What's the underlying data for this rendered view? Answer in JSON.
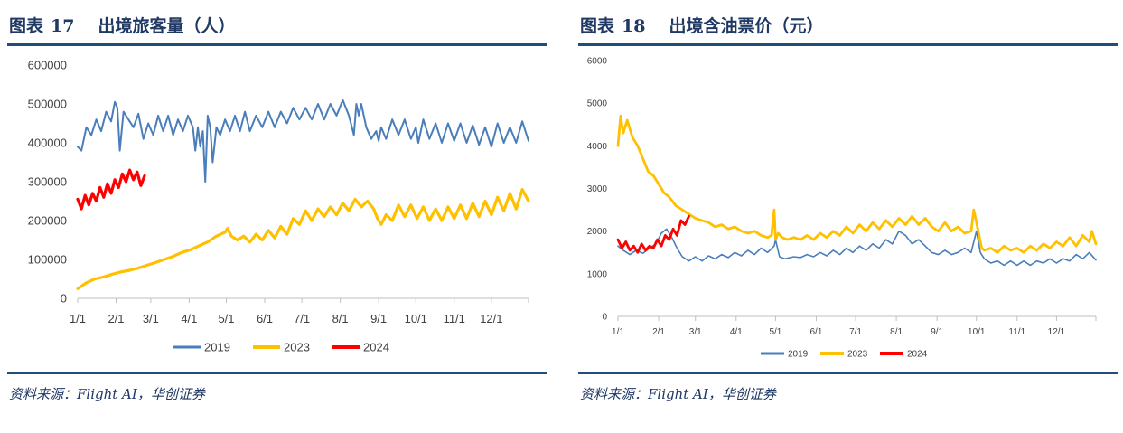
{
  "panels": [
    {
      "figure_label": "图表",
      "figure_number": "17",
      "title": "出境旅客量（人）",
      "source": "资料来源：Flight AI，华创证券"
    },
    {
      "figure_label": "图表",
      "figure_number": "18",
      "title": "出境含油票价（元）",
      "source": "资料来源：Flight AI，华创证券"
    }
  ],
  "colors": {
    "2019": "#4a7ebb",
    "2023": "#ffc000",
    "2024": "#ff0000",
    "axis": "#bfbfbf",
    "title": "#1f3864"
  },
  "chart_data": [
    {
      "type": "line",
      "title": "出境旅客量（人）",
      "x_tick_labels": [
        "1/1",
        "2/1",
        "3/1",
        "4/1",
        "5/1",
        "6/1",
        "7/1",
        "8/1",
        "9/1",
        "10/1",
        "11/1",
        "12/1"
      ],
      "y_tick_labels": [
        "0",
        "100000",
        "200000",
        "300000",
        "400000",
        "500000",
        "600000"
      ],
      "ylim": [
        0,
        600000
      ],
      "x_unit": "day of year (1 = Jan 1)",
      "legend": [
        "2019",
        "2023",
        "2024"
      ],
      "legend_position": "bottom",
      "grid": false,
      "series": [
        {
          "name": "2019",
          "x": [
            1,
            4,
            8,
            12,
            16,
            20,
            24,
            28,
            31,
            33,
            35,
            38,
            42,
            46,
            50,
            54,
            58,
            62,
            66,
            70,
            74,
            78,
            82,
            86,
            90,
            94,
            96,
            98,
            100,
            102,
            104,
            106,
            108,
            110,
            113,
            116,
            120,
            124,
            128,
            132,
            136,
            140,
            145,
            150,
            155,
            160,
            165,
            170,
            175,
            180,
            185,
            190,
            195,
            200,
            205,
            210,
            215,
            220,
            224,
            226,
            228,
            230,
            234,
            238,
            242,
            244,
            246,
            250,
            255,
            260,
            265,
            270,
            274,
            276,
            280,
            285,
            290,
            295,
            300,
            305,
            310,
            315,
            320,
            325,
            330,
            335,
            340,
            345,
            350,
            355,
            360,
            365
          ],
          "y": [
            390000,
            380000,
            440000,
            420000,
            460000,
            430000,
            480000,
            455000,
            505000,
            490000,
            380000,
            480000,
            460000,
            440000,
            475000,
            410000,
            450000,
            420000,
            470000,
            430000,
            470000,
            420000,
            460000,
            430000,
            470000,
            440000,
            380000,
            440000,
            390000,
            430000,
            300000,
            470000,
            440000,
            350000,
            440000,
            420000,
            460000,
            430000,
            470000,
            430000,
            480000,
            430000,
            470000,
            440000,
            480000,
            440000,
            480000,
            450000,
            490000,
            460000,
            490000,
            460000,
            500000,
            460000,
            500000,
            470000,
            510000,
            470000,
            420000,
            500000,
            470000,
            500000,
            440000,
            410000,
            430000,
            405000,
            440000,
            410000,
            460000,
            420000,
            460000,
            410000,
            440000,
            400000,
            460000,
            410000,
            450000,
            400000,
            450000,
            405000,
            450000,
            400000,
            445000,
            395000,
            440000,
            390000,
            450000,
            400000,
            440000,
            400000,
            455000,
            405000
          ]
        },
        {
          "name": "2023",
          "x": [
            1,
            8,
            15,
            22,
            29,
            36,
            43,
            50,
            57,
            64,
            71,
            78,
            85,
            92,
            99,
            106,
            113,
            120,
            122,
            125,
            130,
            135,
            140,
            145,
            150,
            155,
            160,
            165,
            170,
            175,
            180,
            185,
            190,
            195,
            200,
            205,
            210,
            215,
            220,
            225,
            230,
            235,
            240,
            243,
            246,
            250,
            255,
            260,
            265,
            270,
            275,
            280,
            285,
            290,
            295,
            300,
            305,
            310,
            315,
            320,
            325,
            330,
            335,
            340,
            345,
            350,
            355,
            360,
            365
          ],
          "y": [
            25000,
            40000,
            50000,
            55000,
            62000,
            68000,
            72000,
            78000,
            85000,
            92000,
            100000,
            108000,
            118000,
            125000,
            135000,
            145000,
            160000,
            170000,
            180000,
            160000,
            150000,
            160000,
            145000,
            165000,
            150000,
            175000,
            155000,
            185000,
            165000,
            205000,
            190000,
            225000,
            200000,
            230000,
            210000,
            235000,
            215000,
            245000,
            225000,
            255000,
            235000,
            250000,
            230000,
            205000,
            190000,
            215000,
            200000,
            240000,
            210000,
            240000,
            205000,
            235000,
            200000,
            230000,
            200000,
            235000,
            205000,
            240000,
            205000,
            245000,
            210000,
            250000,
            215000,
            260000,
            225000,
            270000,
            230000,
            280000,
            250000
          ]
        },
        {
          "name": "2024",
          "x": [
            1,
            4,
            7,
            10,
            13,
            16,
            19,
            22,
            25,
            28,
            31,
            34,
            37,
            40,
            43,
            46,
            49,
            52,
            55
          ],
          "y": [
            255000,
            230000,
            265000,
            240000,
            270000,
            250000,
            285000,
            260000,
            295000,
            270000,
            305000,
            285000,
            320000,
            300000,
            330000,
            305000,
            325000,
            290000,
            315000
          ]
        }
      ]
    },
    {
      "type": "line",
      "title": "出境含油票价（元）",
      "x_tick_labels": [
        "1/1",
        "2/1",
        "3/1",
        "4/1",
        "5/1",
        "6/1",
        "7/1",
        "8/1",
        "9/1",
        "10/1",
        "11/1",
        "12/1"
      ],
      "y_tick_labels": [
        "0",
        "1000",
        "2000",
        "3000",
        "4000",
        "5000",
        "6000"
      ],
      "ylim": [
        0,
        6000
      ],
      "x_unit": "day of year (1 = Jan 1)",
      "legend": [
        "2019",
        "2023",
        "2024"
      ],
      "legend_position": "bottom",
      "grid": false,
      "series": [
        {
          "name": "2019",
          "x": [
            1,
            5,
            10,
            15,
            20,
            25,
            30,
            34,
            38,
            42,
            46,
            50,
            55,
            60,
            65,
            70,
            75,
            80,
            85,
            90,
            95,
            100,
            105,
            110,
            115,
            120,
            121,
            124,
            128,
            135,
            140,
            145,
            150,
            155,
            160,
            165,
            170,
            175,
            180,
            185,
            190,
            195,
            200,
            205,
            210,
            215,
            220,
            225,
            230,
            235,
            240,
            245,
            250,
            255,
            260,
            265,
            270,
            272,
            274,
            277,
            280,
            285,
            290,
            295,
            300,
            305,
            310,
            315,
            320,
            325,
            330,
            335,
            340,
            345,
            350,
            355,
            360,
            365
          ],
          "y": [
            1650,
            1550,
            1450,
            1550,
            1480,
            1600,
            1700,
            1950,
            2050,
            1850,
            1600,
            1400,
            1300,
            1400,
            1300,
            1420,
            1350,
            1450,
            1380,
            1500,
            1420,
            1550,
            1450,
            1600,
            1500,
            1650,
            1800,
            1400,
            1350,
            1400,
            1380,
            1450,
            1400,
            1500,
            1420,
            1550,
            1450,
            1600,
            1500,
            1650,
            1550,
            1700,
            1600,
            1800,
            1700,
            2000,
            1900,
            1700,
            1800,
            1650,
            1500,
            1450,
            1550,
            1450,
            1500,
            1600,
            1500,
            1750,
            2000,
            1500,
            1350,
            1250,
            1300,
            1200,
            1300,
            1200,
            1300,
            1200,
            1300,
            1250,
            1350,
            1250,
            1350,
            1300,
            1450,
            1350,
            1500,
            1320
          ]
        },
        {
          "name": "2023",
          "x": [
            1,
            3,
            5,
            8,
            12,
            16,
            20,
            24,
            28,
            32,
            36,
            40,
            45,
            50,
            55,
            60,
            65,
            70,
            75,
            80,
            85,
            90,
            95,
            100,
            105,
            110,
            115,
            118,
            120,
            121,
            123,
            126,
            130,
            135,
            140,
            145,
            150,
            155,
            160,
            165,
            170,
            175,
            180,
            185,
            190,
            195,
            200,
            205,
            210,
            215,
            220,
            225,
            230,
            235,
            240,
            245,
            250,
            255,
            260,
            265,
            270,
            272,
            274,
            276,
            278,
            280,
            285,
            290,
            295,
            300,
            305,
            310,
            315,
            320,
            325,
            330,
            335,
            340,
            345,
            350,
            355,
            360,
            362,
            365
          ],
          "y": [
            4000,
            4700,
            4300,
            4600,
            4200,
            4000,
            3700,
            3400,
            3300,
            3100,
            2900,
            2800,
            2600,
            2500,
            2400,
            2300,
            2250,
            2200,
            2100,
            2150,
            2050,
            2100,
            2000,
            1950,
            2000,
            1900,
            1850,
            1900,
            2500,
            1800,
            1950,
            1850,
            1800,
            1850,
            1800,
            1900,
            1800,
            1950,
            1850,
            2000,
            1900,
            2100,
            1950,
            2150,
            2000,
            2200,
            2050,
            2250,
            2100,
            2300,
            2150,
            2350,
            2150,
            2300,
            2100,
            2000,
            2200,
            2000,
            2100,
            1950,
            2000,
            2500,
            2200,
            1900,
            1600,
            1550,
            1600,
            1500,
            1650,
            1550,
            1600,
            1500,
            1650,
            1550,
            1700,
            1600,
            1750,
            1650,
            1850,
            1650,
            1900,
            1750,
            2000,
            1700
          ]
        },
        {
          "name": "2024",
          "x": [
            1,
            4,
            7,
            10,
            13,
            16,
            19,
            22,
            25,
            28,
            31,
            34,
            37,
            40,
            43,
            46,
            49,
            52,
            55
          ],
          "y": [
            1800,
            1600,
            1750,
            1550,
            1650,
            1500,
            1700,
            1550,
            1650,
            1600,
            1800,
            1650,
            1900,
            1800,
            2050,
            1900,
            2250,
            2150,
            2350
          ]
        }
      ]
    }
  ]
}
